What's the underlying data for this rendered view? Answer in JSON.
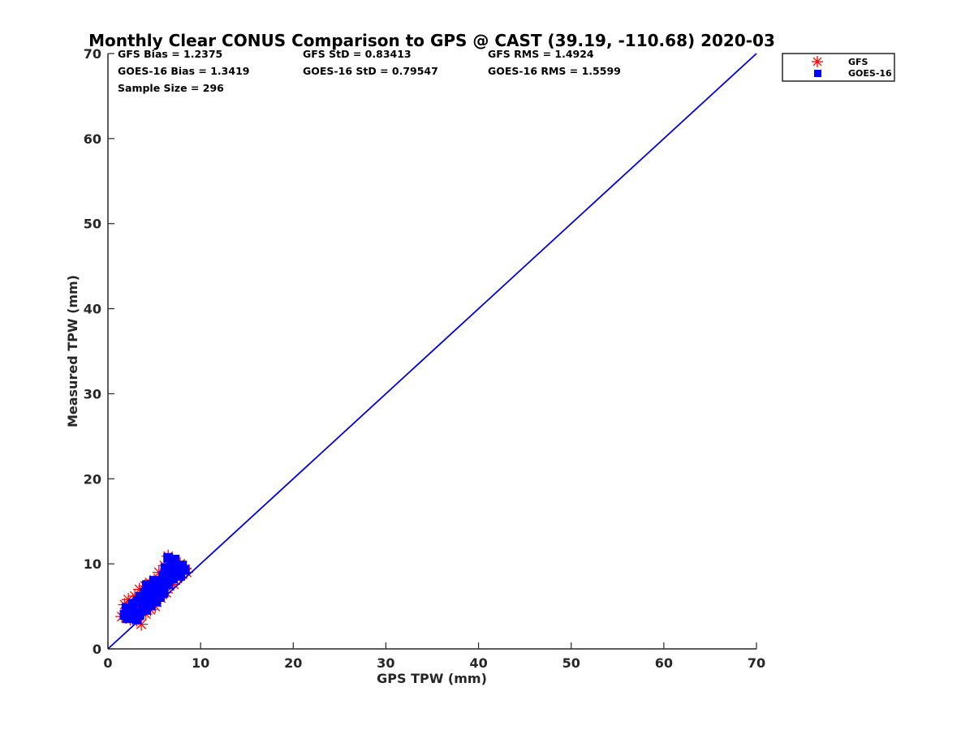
{
  "chart_data": {
    "type": "scatter",
    "title": "Monthly Clear CONUS Comparison to GPS @ CAST (39.19, -110.68) 2020-03",
    "xlabel": "GPS TPW (mm)",
    "ylabel": "Measured TPW (mm)",
    "xlim": [
      0,
      70
    ],
    "ylim": [
      0,
      70
    ],
    "xticks": [
      0,
      10,
      20,
      30,
      40,
      50,
      60,
      70
    ],
    "yticks": [
      0,
      10,
      20,
      30,
      40,
      50,
      60,
      70
    ],
    "grid": false,
    "legend_position": "outside-top-right",
    "stats": [
      [
        "GFS Bias = 1.2375",
        "GFS StD = 0.83413",
        "GFS RMS = 1.4924"
      ],
      [
        "GOES-16 Bias = 1.3419",
        "GOES-16 StD = 0.79547",
        "GOES-16 RMS = 1.5599"
      ],
      [
        "Sample Size = 296"
      ]
    ],
    "reference_line": {
      "name": "1:1",
      "x": [
        0,
        70
      ],
      "y": [
        0,
        70
      ],
      "color": "#0000dd"
    },
    "series": [
      {
        "name": "GFS",
        "marker": "asterisk",
        "color": "#ff0000",
        "points": [
          [
            1.5,
            3.8
          ],
          [
            1.8,
            5.2
          ],
          [
            2.0,
            4.2
          ],
          [
            2.2,
            5.8
          ],
          [
            2.4,
            3.5
          ],
          [
            2.6,
            4.8
          ],
          [
            2.9,
            6.2
          ],
          [
            3.1,
            3.4
          ],
          [
            3.3,
            5.0
          ],
          [
            3.4,
            7.0
          ],
          [
            3.6,
            2.9
          ],
          [
            3.8,
            6.0
          ],
          [
            4.0,
            7.4
          ],
          [
            4.1,
            4.1
          ],
          [
            4.3,
            6.4
          ],
          [
            4.5,
            7.8
          ],
          [
            4.6,
            4.6
          ],
          [
            4.8,
            6.9
          ],
          [
            5.0,
            8.1
          ],
          [
            5.1,
            5.0
          ],
          [
            5.3,
            7.4
          ],
          [
            5.5,
            9.0
          ],
          [
            5.7,
            6.0
          ],
          [
            5.9,
            8.2
          ],
          [
            6.1,
            9.8
          ],
          [
            6.3,
            6.6
          ],
          [
            6.5,
            10.9
          ],
          [
            6.7,
            8.6
          ],
          [
            6.9,
            10.4
          ],
          [
            7.1,
            7.6
          ],
          [
            7.3,
            9.8
          ],
          [
            7.5,
            8.3
          ],
          [
            7.8,
            10.0
          ],
          [
            8.0,
            8.8
          ],
          [
            8.3,
            9.4
          ],
          [
            8.5,
            9.0
          ],
          [
            3.0,
            4.3
          ],
          [
            4.4,
            5.4
          ],
          [
            5.6,
            7.0
          ],
          [
            6.8,
            9.2
          ]
        ]
      },
      {
        "name": "GOES-16",
        "marker": "square",
        "color": "#0000ff",
        "points": [
          [
            1.8,
            4.0
          ],
          [
            2.0,
            4.8
          ],
          [
            2.3,
            4.4
          ],
          [
            2.5,
            3.8
          ],
          [
            2.7,
            5.3
          ],
          [
            3.0,
            4.2
          ],
          [
            3.2,
            5.6
          ],
          [
            3.4,
            4.0
          ],
          [
            3.5,
            6.1
          ],
          [
            3.8,
            5.0
          ],
          [
            4.0,
            6.6
          ],
          [
            4.1,
            4.6
          ],
          [
            4.3,
            5.8
          ],
          [
            4.5,
            7.0
          ],
          [
            4.6,
            5.1
          ],
          [
            4.8,
            6.3
          ],
          [
            5.0,
            6.9
          ],
          [
            5.0,
            8.0
          ],
          [
            5.2,
            5.6
          ],
          [
            5.5,
            7.2
          ],
          [
            5.6,
            6.1
          ],
          [
            5.8,
            7.8
          ],
          [
            6.0,
            6.6
          ],
          [
            6.0,
            8.6
          ],
          [
            6.2,
            9.5
          ],
          [
            6.5,
            7.6
          ],
          [
            6.5,
            10.7
          ],
          [
            6.8,
            9.1
          ],
          [
            7.0,
            8.3
          ],
          [
            7.2,
            10.5
          ],
          [
            7.5,
            9.5
          ],
          [
            7.8,
            8.6
          ],
          [
            8.0,
            9.8
          ],
          [
            8.3,
            9.3
          ],
          [
            2.1,
            3.6
          ],
          [
            3.1,
            3.5
          ],
          [
            4.2,
            7.5
          ],
          [
            5.5,
            6.8
          ],
          [
            6.8,
            10.0
          ],
          [
            7.5,
            8.9
          ]
        ]
      }
    ]
  }
}
